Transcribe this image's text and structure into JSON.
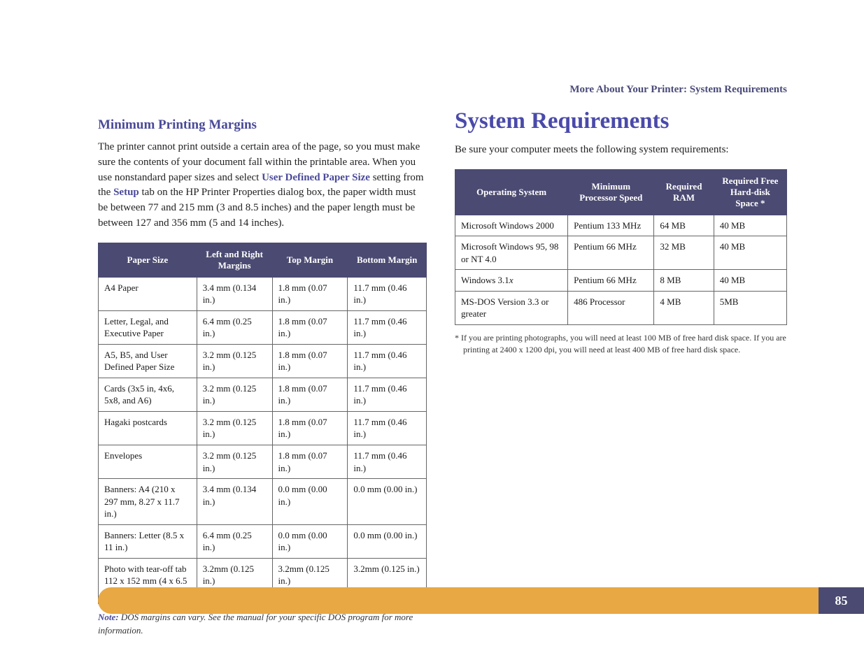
{
  "breadcrumb": "More About Your Printer: System Requirements",
  "left": {
    "heading": "Minimum Printing Margins",
    "para_pre": "The printer cannot print outside a certain area of the page, so you must make sure the contents of your document fall within the printable area. When you use nonstandard paper sizes and select ",
    "link1": "User Defined Paper Size",
    "para_mid": " setting from the ",
    "link2": "Setup",
    "para_post": " tab on the HP Printer Properties dialog box, the paper width must be between 77 and 215 mm (3 and 8.5 inches) and the paper length must be between 127 and 356 mm (5 and 14 inches).",
    "marginTable": {
      "type": "table",
      "columns": [
        "Paper Size",
        "Left and Right Margins",
        "Top Margin",
        "Bottom Margin"
      ],
      "col_widths": [
        "30%",
        "23%",
        "23%",
        "24%"
      ],
      "header_bg": "#4b4a72",
      "header_fg": "#ffffff",
      "border_color": "#666666",
      "body_fontsize": 13,
      "rows": [
        [
          "A4 Paper",
          "3.4 mm (0.134 in.)",
          "1.8 mm (0.07 in.)",
          "11.7 mm (0.46 in.)"
        ],
        [
          "Letter, Legal, and Executive Paper",
          "6.4 mm (0.25 in.)",
          "1.8 mm (0.07 in.)",
          "11.7 mm (0.46 in.)"
        ],
        [
          "A5, B5, and User Defined Paper Size",
          "3.2 mm (0.125 in.)",
          "1.8 mm (0.07 in.)",
          "11.7 mm (0.46 in.)"
        ],
        [
          "Cards (3x5 in, 4x6, 5x8, and A6)",
          "3.2 mm (0.125 in.)",
          "1.8 mm (0.07 in.)",
          "11.7 mm (0.46 in.)"
        ],
        [
          "Hagaki postcards",
          "3.2 mm (0.125 in.)",
          "1.8 mm (0.07 in.)",
          "11.7 mm (0.46 in.)"
        ],
        [
          "Envelopes",
          "3.2 mm (0.125 in.)",
          "1.8 mm (0.07 in.)",
          "11.7 mm (0.46 in.)"
        ],
        [
          "Banners: A4 (210 x 297 mm, 8.27 x 11.7 in.)",
          "3.4 mm (0.134 in.)",
          "0.0 mm (0.00 in.)",
          "0.0 mm (0.00 in.)"
        ],
        [
          "Banners: Letter (8.5 x 11 in.)",
          "6.4 mm (0.25 in.)",
          "0.0 mm (0.00 in.)",
          "0.0 mm (0.00 in.)"
        ],
        [
          "Photo with tear-off tab 112 x 152 mm (4 x 6.5 in.)",
          "3.2mm (0.125 in.)",
          "3.2mm (0.125 in.)",
          "3.2mm (0.125 in.)"
        ]
      ]
    },
    "note_label": "Note:",
    "note_text": "  DOS margins can vary. See the manual for your specific DOS program for more information."
  },
  "right": {
    "heading": "System Requirements",
    "para": "Be sure your computer meets the following system requirements:",
    "reqTable": {
      "type": "table",
      "columns": [
        "Operating System",
        "Minimum Processor Speed",
        "Required RAM",
        "Required Free Hard-disk Space *"
      ],
      "col_widths": [
        "34%",
        "26%",
        "18%",
        "22%"
      ],
      "header_bg": "#4b4a72",
      "header_fg": "#ffffff",
      "border_color": "#666666",
      "body_fontsize": 13,
      "rows": [
        [
          "Microsoft Windows 2000",
          "Pentium 133 MHz",
          "64 MB",
          "40 MB"
        ],
        [
          "Microsoft Windows 95, 98 or NT 4.0",
          "Pentium 66 MHz",
          "32 MB",
          "40 MB"
        ],
        [
          "Windows 3.1x",
          "Pentium 66 MHz",
          "8 MB",
          "40 MB"
        ],
        [
          "MS-DOS Version 3.3 or greater",
          "486 Processor",
          "4 MB",
          "5MB"
        ]
      ],
      "italic_cells": [
        [
          2,
          0
        ]
      ]
    },
    "footnote": "* If you are printing photographs, you will need at least 100 MB of free hard disk space. If you are printing at 2400 x 1200 dpi, you will need at least 400 MB of free hard disk space."
  },
  "page_number": "85",
  "colors": {
    "heading": "#4a4a9a",
    "big_heading": "#4a4aaa",
    "table_header_bg": "#4b4a72",
    "footer_bar": "#e8a843",
    "body_text": "#1a1a1a"
  },
  "typography": {
    "body_fontsize": 15,
    "big_heading_fontsize": 33,
    "section_heading_fontsize": 19,
    "note_fontsize": 13,
    "footnote_fontsize": 12,
    "font_family": "serif"
  }
}
